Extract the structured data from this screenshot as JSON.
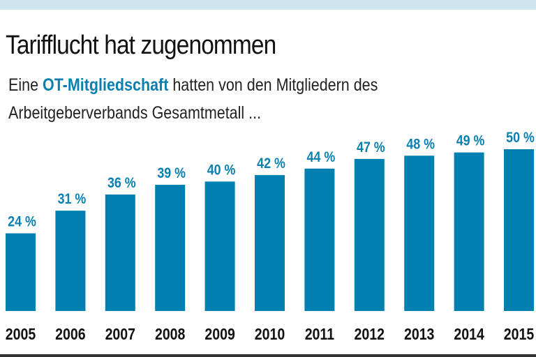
{
  "header": {
    "title": "Tarifflucht hat zugenommen",
    "subtitle_pre": "Eine ",
    "subtitle_highlight": "OT-Mitgliedschaft",
    "subtitle_post": " hatten von den Mitgliedern des",
    "subtitle_line2": "Arbeitgeberverbands Gesamtmetall ..."
  },
  "colors": {
    "bar": "#0080b0",
    "label": "#0a80b0",
    "band": "#cde5ef"
  },
  "chart_data": {
    "type": "bar",
    "categories": [
      "2005",
      "2006",
      "2007",
      "2008",
      "2009",
      "2010",
      "2011",
      "2012",
      "2013",
      "2014",
      "2015"
    ],
    "values": [
      24,
      31,
      36,
      39,
      40,
      42,
      44,
      47,
      48,
      49,
      50
    ],
    "data_labels": [
      "24 %",
      "31 %",
      "36 %",
      "39 %",
      "40 %",
      "42 %",
      "44 %",
      "47 %",
      "48 %",
      "49 %",
      "50 %"
    ],
    "unit": "%",
    "ylim": [
      0,
      50
    ],
    "grid": false,
    "legend": "none"
  }
}
